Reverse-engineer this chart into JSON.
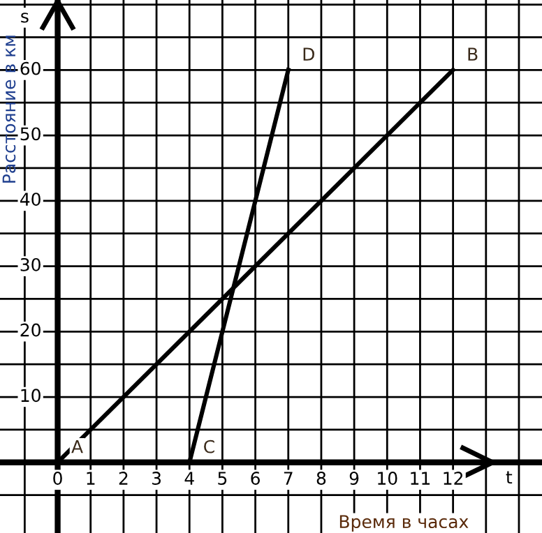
{
  "chart_data": {
    "type": "line",
    "xlabel": "Время в часах",
    "ylabel": "Расстояние в км",
    "annotations": [
      "s",
      "t",
      {
        "text": "A",
        "x": 0,
        "y": 0
      },
      {
        "text": "B",
        "x": 12,
        "y": 60
      },
      {
        "text": "C",
        "x": 4,
        "y": 0
      },
      {
        "text": "D",
        "x": 7,
        "y": 60
      }
    ],
    "series": [
      {
        "color": "#000000",
        "x": [
          0,
          12
        ],
        "values": [
          0,
          60
        ]
      },
      {
        "color": "#000000",
        "x": [
          4,
          7
        ],
        "values": [
          0,
          60
        ]
      }
    ],
    "xlim": [
      -1.75,
      14.7
    ],
    "ylim": [
      -10.8,
      70.7
    ],
    "xticks": [
      {
        "value": -1,
        "label": null
      },
      0,
      1,
      2,
      3,
      4,
      5,
      6,
      7,
      8,
      9,
      10,
      11,
      12,
      {
        "value": 13,
        "label": null
      },
      {
        "value": 14,
        "label": null
      }
    ],
    "yticks": [
      {
        "value": -5,
        "label": null
      },
      {
        "value": 5,
        "label": null
      },
      10,
      {
        "value": 15,
        "label": null
      },
      20,
      {
        "value": 25,
        "label": null
      },
      30,
      {
        "value": 35,
        "label": null
      },
      40,
      {
        "value": 45,
        "label": null
      },
      50,
      {
        "value": 55,
        "label": null
      },
      60,
      {
        "value": 65,
        "label": null
      },
      {
        "value": 70,
        "label": null
      }
    ],
    "grid": true,
    "marker": "none",
    "line_style": "solid"
  }
}
